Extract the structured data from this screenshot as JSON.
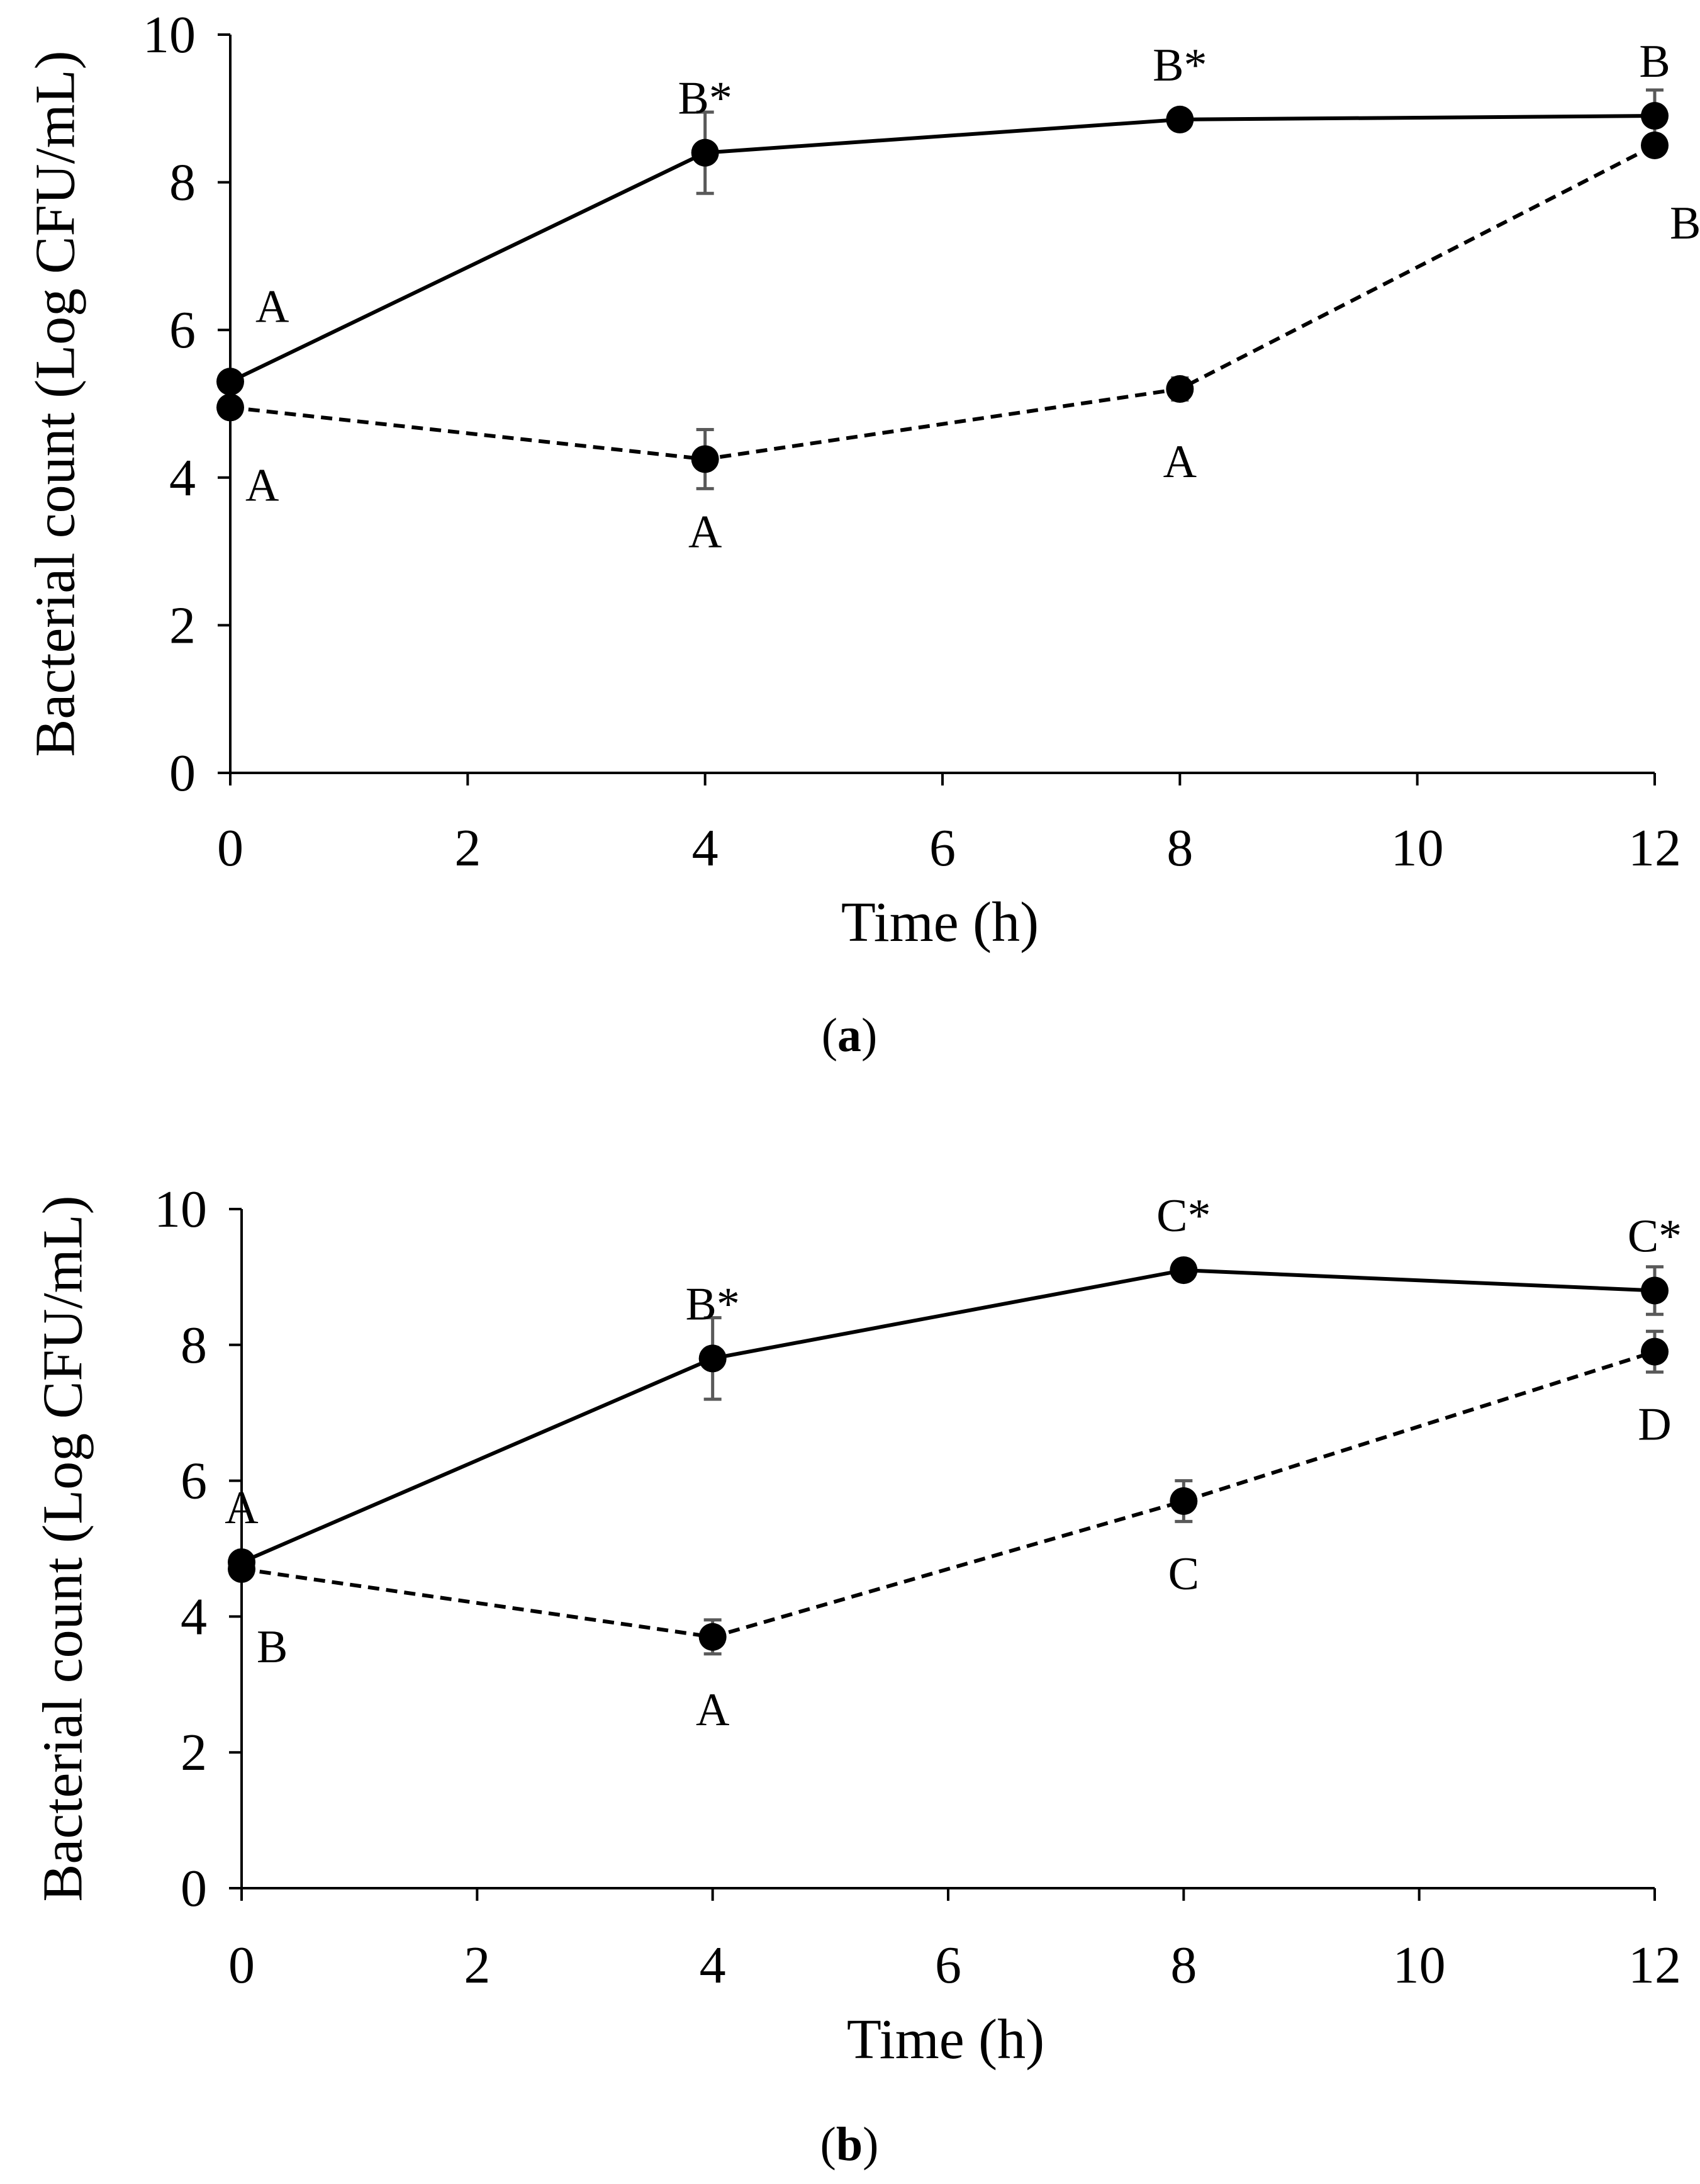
{
  "colors": {
    "series_line": "#000000",
    "marker": "#000000",
    "error_bar": "#595959",
    "background": "#ffffff"
  },
  "chart_data": [
    {
      "type": "line",
      "panel": "a",
      "caption": {
        "open": "(",
        "letter": "a",
        "close": ")"
      },
      "xlabel": "Time (h)",
      "ylabel": "Bacterial count (Log CFU/mL)",
      "xlim": [
        0,
        12
      ],
      "ylim": [
        0,
        10
      ],
      "xticks": [
        "0",
        "2",
        "4",
        "6",
        "8",
        "10",
        "12"
      ],
      "yticks": [
        "0",
        "2",
        "4",
        "6",
        "8",
        "10"
      ],
      "grid": false,
      "legend": "none",
      "x": [
        0,
        4,
        8,
        12
      ],
      "series": [
        {
          "style": "solid",
          "values": [
            5.3,
            8.4,
            8.85,
            8.9
          ],
          "errors": [
            0.05,
            0.55,
            0.05,
            0.35
          ],
          "labels": [
            "A",
            "B*",
            "B*",
            "B"
          ],
          "label_pos": [
            "above-right",
            "above",
            "above",
            "above"
          ]
        },
        {
          "style": "dashed",
          "values": [
            4.95,
            4.25,
            5.2,
            8.5
          ],
          "errors": [
            0.05,
            0.4,
            0.15,
            0.05
          ],
          "labels": [
            "A",
            "A",
            "A",
            "B"
          ],
          "label_pos": [
            "below-right",
            "below",
            "below",
            "below-right"
          ]
        }
      ]
    },
    {
      "type": "line",
      "panel": "b",
      "caption": {
        "open": "(",
        "letter": "b",
        "close": ")"
      },
      "xlabel": "Time (h)",
      "ylabel": "Bacterial count (Log CFU/mL)",
      "xlim": [
        0,
        12
      ],
      "ylim": [
        0,
        10
      ],
      "xticks": [
        "0",
        "2",
        "4",
        "6",
        "8",
        "10",
        "12"
      ],
      "yticks": [
        "0",
        "2",
        "4",
        "6",
        "8",
        "10"
      ],
      "grid": false,
      "legend": "none",
      "x": [
        0,
        4,
        8,
        12
      ],
      "series": [
        {
          "style": "solid",
          "values": [
            4.8,
            7.8,
            9.1,
            8.8
          ],
          "errors": [
            0.05,
            0.6,
            0.05,
            0.35
          ],
          "labels": [
            "A",
            "B*",
            "C*",
            "C*"
          ],
          "label_pos": [
            "above",
            "above",
            "above",
            "above"
          ]
        },
        {
          "style": "dashed",
          "values": [
            4.7,
            3.7,
            5.7,
            7.9
          ],
          "errors": [
            0.05,
            0.25,
            0.3,
            0.3
          ],
          "labels": [
            "B",
            "A",
            "C",
            "D"
          ],
          "label_pos": [
            "below-right",
            "below",
            "below",
            "below"
          ]
        }
      ]
    }
  ]
}
